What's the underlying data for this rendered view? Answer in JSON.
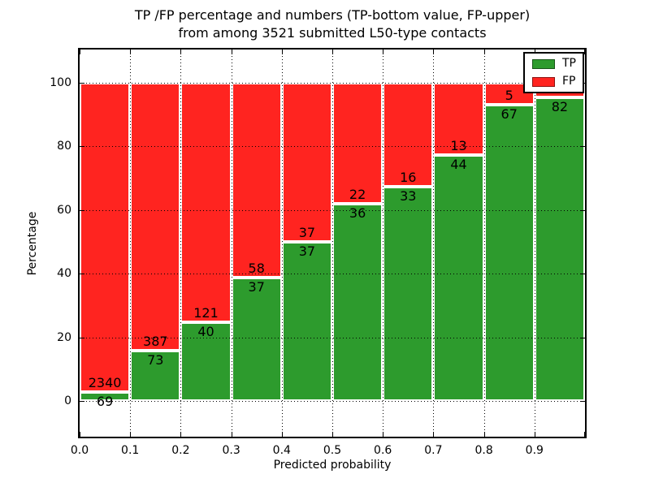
{
  "title": {
    "line1": "TP /FP percentage and numbers (TP-bottom value, FP-upper)",
    "line2": "from among 3521 submitted L50-type contacts"
  },
  "axes": {
    "x_label": "Predicted probability",
    "y_label": "Percentage",
    "x_tick_labels": [
      "0.0",
      "0.1",
      "0.2",
      "0.3",
      "0.4",
      "0.5",
      "0.6",
      "0.7",
      "0.8",
      "0.9"
    ],
    "y_tick_labels": [
      "0",
      "20",
      "40",
      "60",
      "80",
      "100"
    ],
    "y_tick_values": [
      0,
      20,
      40,
      60,
      80,
      100
    ]
  },
  "legend": {
    "items": [
      {
        "label": "TP",
        "color": "#2d9b2d"
      },
      {
        "label": "FP",
        "color": "#ff2420"
      }
    ]
  },
  "colors": {
    "tp": "#2d9b2d",
    "fp": "#ff2420",
    "bar_edge": "#ffffff",
    "text": "#000000"
  },
  "chart_data": {
    "type": "bar",
    "stacked": true,
    "title": "TP /FP percentage and numbers (TP-bottom value, FP-upper) from among 3521 submitted L50-type contacts",
    "xlabel": "Predicted probability",
    "ylabel": "Percentage",
    "total_submitted_contacts": 3521,
    "categories": [
      "0.0",
      "0.1",
      "0.2",
      "0.3",
      "0.4",
      "0.5",
      "0.6",
      "0.7",
      "0.8",
      "0.9"
    ],
    "bar_width_x": 0.1,
    "series": [
      {
        "name": "TP",
        "unit": "percent",
        "color": "#2d9b2d",
        "values": [
          2.9,
          15.9,
          24.8,
          38.9,
          50.0,
          62.1,
          67.3,
          77.2,
          93.1,
          95.3
        ]
      },
      {
        "name": "FP",
        "unit": "percent",
        "color": "#ff2420",
        "values": [
          97.1,
          84.1,
          75.2,
          61.1,
          50.0,
          37.9,
          32.7,
          22.8,
          6.9,
          4.7
        ]
      }
    ],
    "tp_count_labels": [
      "69",
      "73",
      "40",
      "37",
      "37",
      "36",
      "33",
      "44",
      "67",
      "82"
    ],
    "fp_count_labels": [
      "2340",
      "387",
      "121",
      "58",
      "37",
      "22",
      "16",
      "13",
      "5",
      ""
    ],
    "xlim": [
      0.0,
      1.0
    ],
    "ylim": [
      -11.7,
      110.4
    ],
    "grid": "dotted both axes",
    "legend_position": "upper right"
  }
}
